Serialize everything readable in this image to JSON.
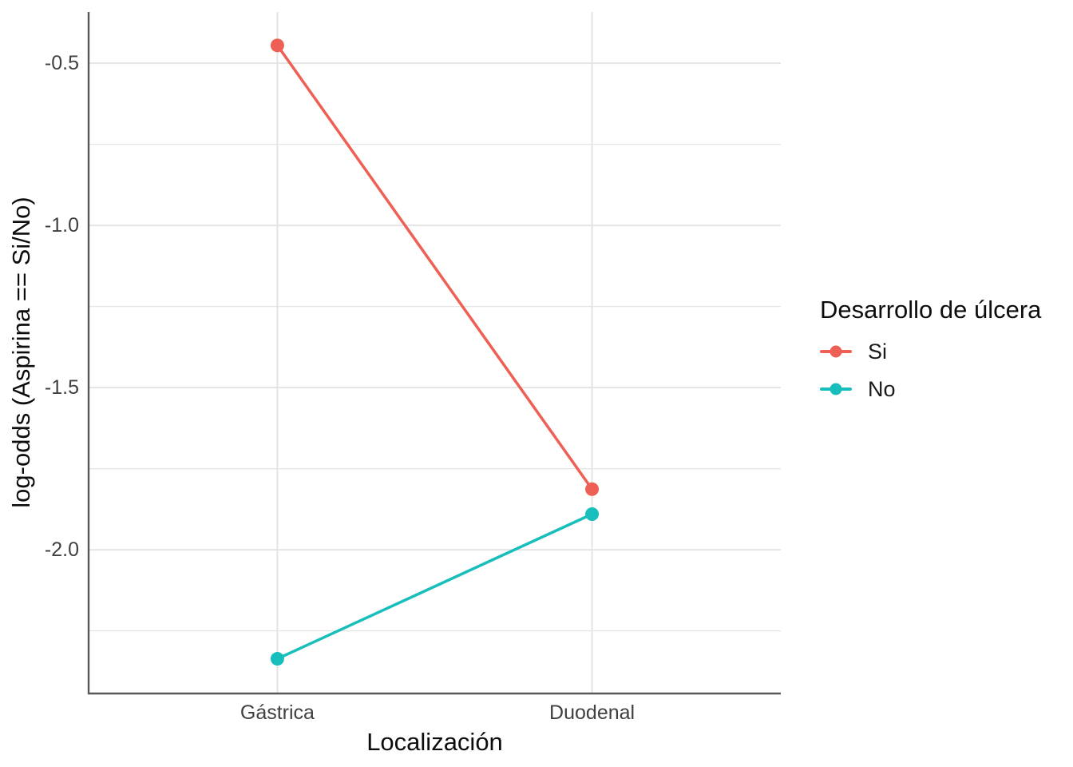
{
  "chart_data": {
    "type": "line",
    "title": "",
    "xlabel": "Localización",
    "ylabel": "log-odds (Aspirina == Si/No)",
    "categories": [
      "Gástrica",
      "Duodenal"
    ],
    "x_positions": [
      0.2727,
      0.7273
    ],
    "series": [
      {
        "name": "Si",
        "color": "#EE6055",
        "values": [
          -0.445,
          -1.813
        ]
      },
      {
        "name": "No",
        "color": "#17BEBB",
        "values": [
          -2.336,
          -1.89
        ]
      }
    ],
    "y_ticks": [
      -0.5,
      -1.0,
      -1.5,
      -2.0
    ],
    "y_tick_labels": [
      "-0.5",
      "-1.0",
      "-1.5",
      "-2.0"
    ],
    "y_minor_ticks": [
      -0.75,
      -1.25,
      -1.75,
      -2.25
    ],
    "ylim": [
      -2.443,
      -0.342
    ],
    "legend": {
      "title": "Desarrollo de úlcera",
      "position": "right",
      "items": [
        {
          "label": "Si",
          "color": "#EE6055"
        },
        {
          "label": "No",
          "color": "#17BEBB"
        }
      ]
    },
    "grid": {
      "horizontal": "major+minor",
      "vertical": "major-at-categories",
      "color": "#E4E4E4"
    },
    "axis_line_color": "#595959",
    "background": "#ffffff"
  }
}
